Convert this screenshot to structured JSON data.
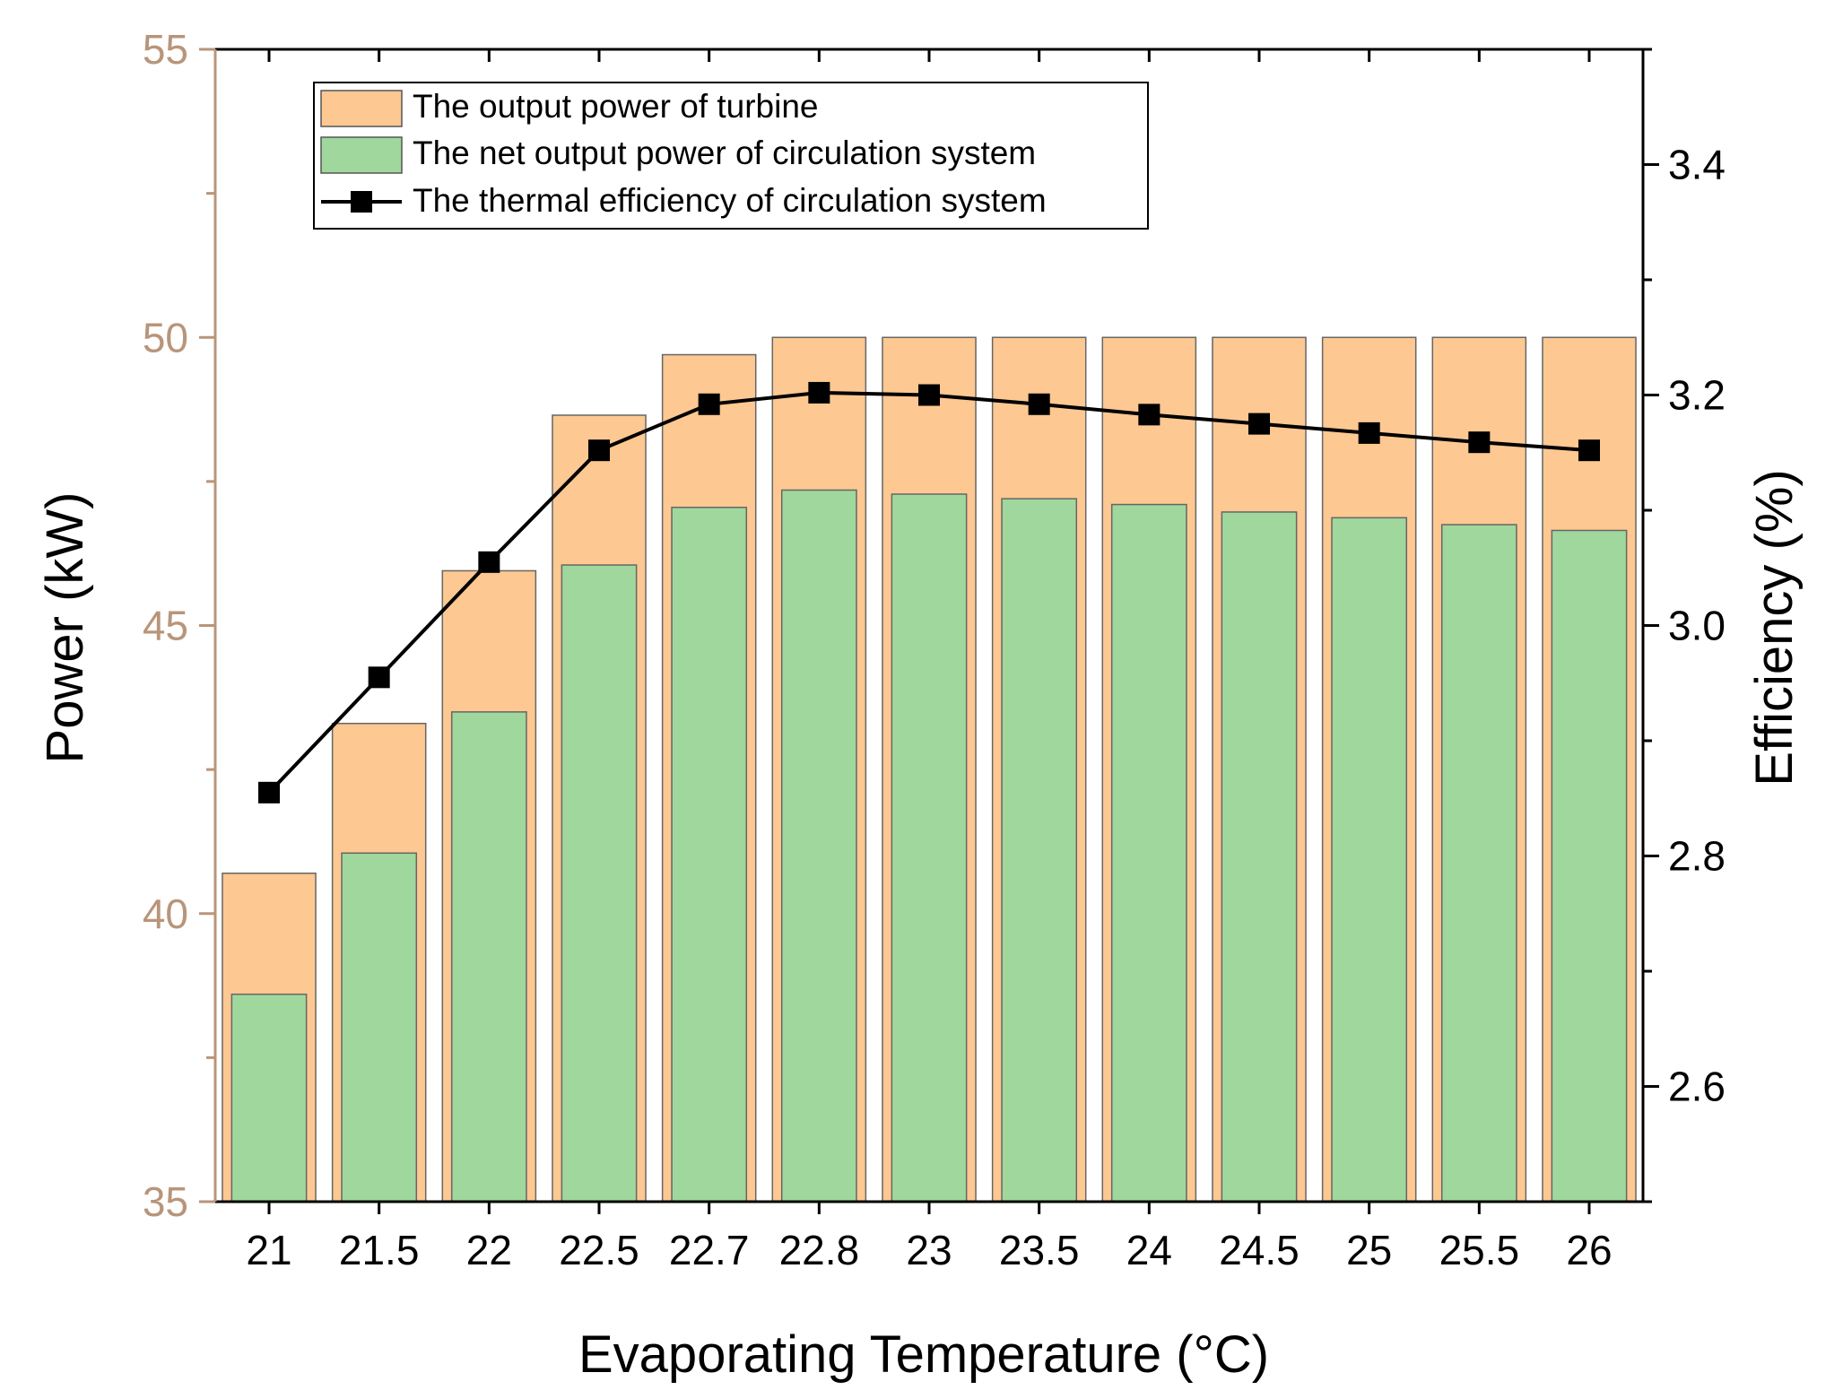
{
  "chart_data": {
    "type": "bar",
    "categories": [
      "21",
      "21.5",
      "22",
      "22.5",
      "22.7",
      "22.8",
      "23",
      "23.5",
      "24",
      "24.5",
      "25",
      "25.5",
      "26"
    ],
    "series": [
      {
        "name": "The output power of turbine",
        "type": "bar",
        "axis": "left",
        "color": "#FDC891",
        "values": [
          40.7,
          43.3,
          45.95,
          48.65,
          49.7,
          50.0,
          50.0,
          50.0,
          50.0,
          50.0,
          50.0,
          50.0,
          50.0
        ]
      },
      {
        "name": "The net output power of circulation system",
        "type": "bar",
        "axis": "left",
        "color": "#A0D79D",
        "values": [
          38.6,
          41.05,
          43.5,
          46.05,
          47.05,
          47.35,
          47.28,
          47.2,
          47.1,
          46.97,
          46.87,
          46.75,
          46.65
        ]
      },
      {
        "name": "The thermal efficiency of circulation system",
        "type": "line",
        "axis": "right",
        "color": "#000000",
        "values": [
          2.855,
          2.955,
          3.055,
          3.152,
          3.192,
          3.202,
          3.2,
          3.192,
          3.183,
          3.175,
          3.167,
          3.159,
          3.152
        ]
      }
    ],
    "xlabel": "Evaporating Temperature (°C)",
    "ylabel": "Power (kW)",
    "y2label": "Efficiency (%)",
    "ylim": [
      35,
      55
    ],
    "yticks": [
      "35",
      "40",
      "45",
      "50",
      "55"
    ],
    "y2lim": [
      2.5,
      3.5
    ],
    "y2ticks": [
      "2.6",
      "2.8",
      "3.0",
      "3.2",
      "3.4"
    ],
    "legend_position": "top-left",
    "left_axis_color": "#B8957A",
    "grid": false
  }
}
